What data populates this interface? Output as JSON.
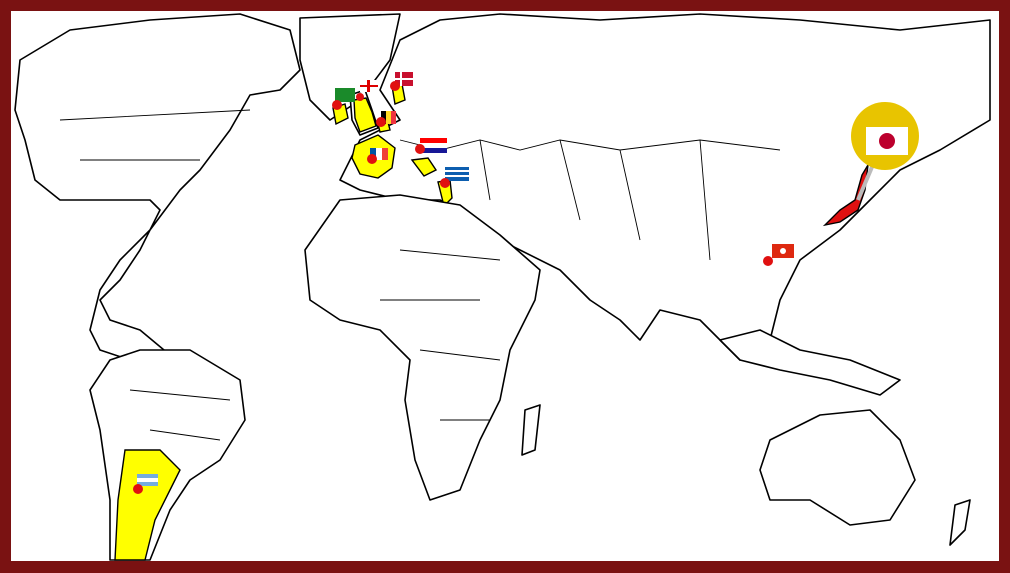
{
  "frame_color": "#7a1212",
  "highlight_color": "#ffff00",
  "pin_color": "#e01010",
  "markers": [
    {
      "icon": "flag-ireland-green-harp-icon",
      "pin": "pin-icon"
    },
    {
      "icon": "flag-england-icon",
      "pin": "pin-icon"
    },
    {
      "icon": "flag-denmark-icon",
      "pin": "pin-icon"
    },
    {
      "icon": "flag-belgium-icon",
      "pin": "pin-icon"
    },
    {
      "icon": "flag-france-icon",
      "pin": "pin-icon"
    },
    {
      "icon": "flag-croatia-icon",
      "pin": "pin-icon"
    },
    {
      "icon": "flag-greece-icon",
      "pin": "pin-icon"
    },
    {
      "icon": "flag-hong-kong-icon",
      "pin": "pin-icon"
    },
    {
      "icon": "flag-japan-icon",
      "pin": "large-gold-pin-icon",
      "selected": true
    },
    {
      "icon": "flag-argentina-icon",
      "pin": "pin-icon"
    }
  ]
}
